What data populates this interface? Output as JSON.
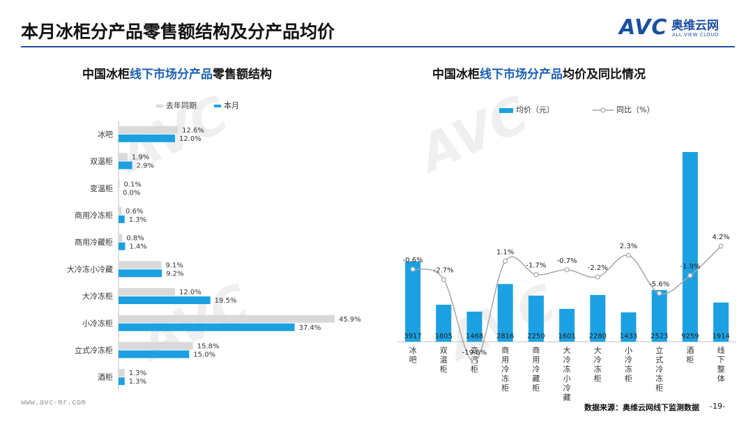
{
  "header": {
    "title": "本月冰柜分产品零售额结构及分产品均价",
    "logo_mark": "AVC",
    "logo_cn": "奥维云网",
    "logo_en": "ALL VIEW CLOUD"
  },
  "left_title": {
    "pre": "中国冰柜",
    "hl": "线下市场分产品",
    "post": "零售额结构"
  },
  "right_title": {
    "pre": "中国冰柜",
    "hl": "线下市场分产品",
    "post": "均价及同比情况"
  },
  "colors": {
    "prev": "#d9d9d9",
    "curr": "#1ba1e2",
    "line": "#a6a6a6",
    "brand": "#1a4fa0"
  },
  "chart_data": [
    {
      "type": "bar",
      "orientation": "horizontal",
      "title": "中国冰柜线下市场分产品零售额结构",
      "categories": [
        "冰吧",
        "双温柜",
        "变温柜",
        "商用冷冻柜",
        "商用冷藏柜",
        "大冷冻小冷藏",
        "大冷冻柜",
        "小冷冻柜",
        "立式冷冻柜",
        "酒柜"
      ],
      "series": [
        {
          "name": "去年同期",
          "values": [
            12.6,
            1.9,
            0.1,
            0.6,
            0.8,
            9.1,
            12.0,
            45.9,
            15.8,
            1.3
          ],
          "labels": [
            "12.6%",
            "1.9%",
            "0.1%",
            "0.6%",
            "0.8%",
            "9.1%",
            "12.0%",
            "45.9%",
            "15.8%",
            "1.3%"
          ]
        },
        {
          "name": "本月",
          "values": [
            12.0,
            2.9,
            0.0,
            1.3,
            1.4,
            9.2,
            19.5,
            37.4,
            15.0,
            1.3
          ],
          "labels": [
            "12.0%",
            "2.9%",
            "0.0%",
            "1.3%",
            "1.4%",
            "9.2%",
            "19.5%",
            "37.4%",
            "15.0%",
            "1.3%"
          ]
        }
      ],
      "xlim": [
        0,
        50
      ]
    },
    {
      "type": "bar+line",
      "title": "中国冰柜线下市场分产品均价及同比情况",
      "categories": [
        "冰吧",
        "双温柜",
        "变温柜",
        "商用冷冻柜",
        "商用冷藏柜",
        "大冷冻小冷藏",
        "大冷冻柜",
        "小冷冻柜",
        "立式冷冻柜",
        "酒柜",
        "线下整体"
      ],
      "series": [
        {
          "name": "均价（元）",
          "type": "bar",
          "values": [
            3917,
            1805,
            1468,
            2816,
            2250,
            1601,
            2280,
            1433,
            2523,
            9259,
            1914
          ],
          "labels": [
            "3917",
            "1805",
            "1468",
            "2816",
            "2250",
            "1601",
            "2280",
            "1433",
            "2523",
            "9259",
            "1914"
          ]
        },
        {
          "name": "同比（%）",
          "type": "line",
          "values": [
            -0.6,
            -2.7,
            -19.8,
            1.1,
            -1.7,
            -0.7,
            -2.2,
            2.3,
            -5.6,
            -1.9,
            4.2
          ],
          "labels": [
            "-0.6%",
            "-2.7%",
            "-19.8%",
            "1.1%",
            "-1.7%",
            "-0.7%",
            "-2.2%",
            "2.3%",
            "-5.6%",
            "-1.9%",
            "4.2%"
          ]
        }
      ],
      "ylim_bar": [
        0,
        10000
      ],
      "ylim_line": [
        -24,
        12
      ]
    }
  ],
  "footer": {
    "url": "www.avc-mr.com",
    "source": "数据来源：奥维云网线下监测数据",
    "page": "-19-"
  }
}
